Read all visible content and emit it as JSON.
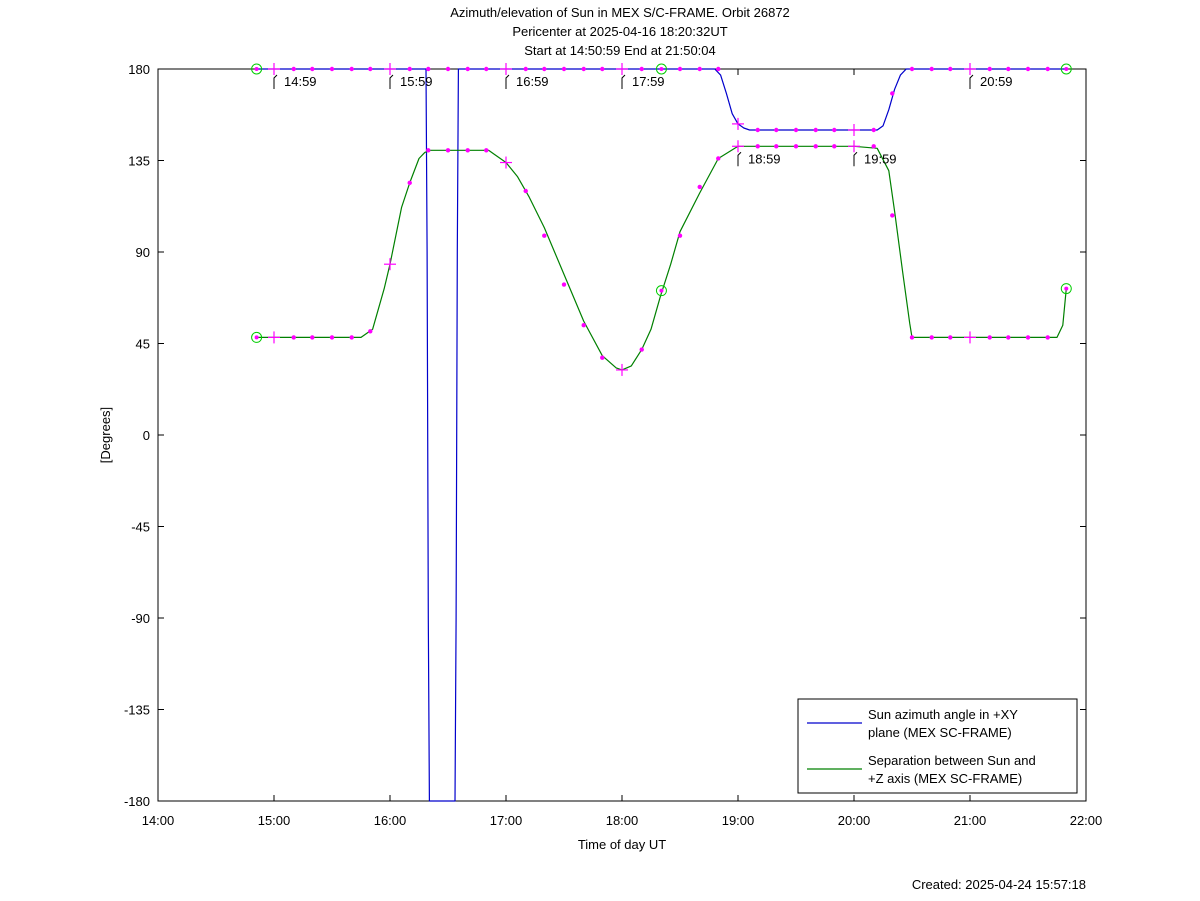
{
  "chart_data": {
    "type": "line",
    "title_lines": [
      "Azimuth/elevation of Sun in MEX S/C-FRAME.  Orbit 26872",
      "Pericenter at 2025-04-16 18:20:32UT",
      "Start at 14:50:59 End at 21:50:04"
    ],
    "xlabel": "Time of day UT",
    "ylabel": "[Degrees]",
    "xlim": [
      14.0,
      22.0
    ],
    "ylim": [
      -180,
      180
    ],
    "x_ticks": [
      {
        "value": 14,
        "label": "14:00"
      },
      {
        "value": 15,
        "label": "15:00"
      },
      {
        "value": 16,
        "label": "16:00"
      },
      {
        "value": 17,
        "label": "17:00"
      },
      {
        "value": 18,
        "label": "18:00"
      },
      {
        "value": 19,
        "label": "19:00"
      },
      {
        "value": 20,
        "label": "20:00"
      },
      {
        "value": 21,
        "label": "21:00"
      },
      {
        "value": 22,
        "label": "22:00"
      }
    ],
    "y_ticks": [
      {
        "value": 180,
        "label": "180"
      },
      {
        "value": 135,
        "label": "135"
      },
      {
        "value": 90,
        "label": "90"
      },
      {
        "value": 45,
        "label": "45"
      },
      {
        "value": 0,
        "label": "0"
      },
      {
        "value": -45,
        "label": "-45"
      },
      {
        "value": -90,
        "label": "-90"
      },
      {
        "value": -135,
        "label": "-135"
      },
      {
        "value": -180,
        "label": "-180"
      }
    ],
    "legend_position": "bottom-right",
    "series": [
      {
        "name_lines": [
          "Sun azimuth angle in +XY",
          "plane (MEX SC-FRAME)"
        ],
        "color": "#0000cc",
        "points": [
          [
            14.85,
            180
          ],
          [
            16.31,
            180
          ],
          [
            16.32,
            90
          ],
          [
            16.33,
            -90
          ],
          [
            16.34,
            -180
          ],
          [
            16.56,
            -180
          ],
          [
            16.57,
            -90
          ],
          [
            16.58,
            90
          ],
          [
            16.59,
            180
          ],
          [
            18.8,
            180
          ],
          [
            18.85,
            177
          ],
          [
            18.9,
            168
          ],
          [
            18.95,
            158
          ],
          [
            19.0,
            153
          ],
          [
            19.05,
            151
          ],
          [
            19.1,
            150
          ],
          [
            20.2,
            150
          ],
          [
            20.25,
            152
          ],
          [
            20.3,
            160
          ],
          [
            20.35,
            170
          ],
          [
            20.4,
            177
          ],
          [
            20.45,
            180
          ],
          [
            21.83,
            180
          ]
        ]
      },
      {
        "name_lines": [
          "Separation between Sun and",
          "+Z axis (MEX SC-FRAME)"
        ],
        "color": "#008000",
        "points": [
          [
            14.85,
            48
          ],
          [
            15.75,
            48
          ],
          [
            15.85,
            52
          ],
          [
            15.9,
            62
          ],
          [
            15.95,
            72
          ],
          [
            16.0,
            84
          ],
          [
            16.05,
            98
          ],
          [
            16.1,
            112
          ],
          [
            16.17,
            124
          ],
          [
            16.25,
            136
          ],
          [
            16.3,
            139
          ],
          [
            16.35,
            140
          ],
          [
            16.85,
            140
          ],
          [
            16.9,
            138
          ],
          [
            17.0,
            134
          ],
          [
            17.1,
            127
          ],
          [
            17.2,
            117
          ],
          [
            17.33,
            102
          ],
          [
            17.5,
            79
          ],
          [
            17.67,
            56
          ],
          [
            17.83,
            39
          ],
          [
            17.95,
            33
          ],
          [
            18.0,
            32
          ],
          [
            18.08,
            34
          ],
          [
            18.17,
            42
          ],
          [
            18.25,
            52
          ],
          [
            18.33,
            68
          ],
          [
            18.42,
            84
          ],
          [
            18.5,
            100
          ],
          [
            18.67,
            119
          ],
          [
            18.83,
            136
          ],
          [
            19.0,
            142
          ],
          [
            19.2,
            142
          ],
          [
            20.0,
            142
          ],
          [
            20.2,
            141
          ],
          [
            20.3,
            130
          ],
          [
            20.35,
            110
          ],
          [
            20.42,
            80
          ],
          [
            20.48,
            55
          ],
          [
            20.5,
            48
          ],
          [
            21.75,
            48
          ],
          [
            21.8,
            54
          ],
          [
            21.83,
            72
          ]
        ]
      }
    ],
    "markers": {
      "color": "#ff00ff",
      "dots": [
        [
          15.17,
          180
        ],
        [
          15.33,
          180
        ],
        [
          15.5,
          180
        ],
        [
          15.67,
          180
        ],
        [
          15.83,
          180
        ],
        [
          16.17,
          180
        ],
        [
          16.33,
          180
        ],
        [
          16.5,
          180
        ],
        [
          16.67,
          180
        ],
        [
          16.83,
          180
        ],
        [
          17.17,
          180
        ],
        [
          17.33,
          180
        ],
        [
          17.5,
          180
        ],
        [
          17.67,
          180
        ],
        [
          17.83,
          180
        ],
        [
          18.17,
          180
        ],
        [
          18.5,
          180
        ],
        [
          18.67,
          180
        ],
        [
          18.83,
          180
        ],
        [
          19.17,
          150
        ],
        [
          19.33,
          150
        ],
        [
          19.5,
          150
        ],
        [
          19.67,
          150
        ],
        [
          19.83,
          150
        ],
        [
          20.17,
          150
        ],
        [
          20.33,
          168
        ],
        [
          20.5,
          180
        ],
        [
          20.67,
          180
        ],
        [
          20.83,
          180
        ],
        [
          21.17,
          180
        ],
        [
          21.33,
          180
        ],
        [
          21.5,
          180
        ],
        [
          21.67,
          180
        ],
        [
          15.17,
          48
        ],
        [
          15.33,
          48
        ],
        [
          15.5,
          48
        ],
        [
          15.67,
          48
        ],
        [
          15.83,
          51
        ],
        [
          16.17,
          124
        ],
        [
          16.33,
          140
        ],
        [
          16.5,
          140
        ],
        [
          16.67,
          140
        ],
        [
          16.83,
          140
        ],
        [
          17.17,
          120
        ],
        [
          17.33,
          98
        ],
        [
          17.5,
          74
        ],
        [
          17.67,
          54
        ],
        [
          17.83,
          38
        ],
        [
          18.17,
          42
        ],
        [
          18.5,
          98
        ],
        [
          18.67,
          122
        ],
        [
          18.83,
          136
        ],
        [
          19.17,
          142
        ],
        [
          19.33,
          142
        ],
        [
          19.5,
          142
        ],
        [
          19.67,
          142
        ],
        [
          19.83,
          142
        ],
        [
          20.17,
          142
        ],
        [
          20.33,
          108
        ],
        [
          20.5,
          48
        ],
        [
          20.67,
          48
        ],
        [
          20.83,
          48
        ],
        [
          21.17,
          48
        ],
        [
          21.33,
          48
        ],
        [
          21.5,
          48
        ],
        [
          21.67,
          48
        ]
      ],
      "crosses": [
        [
          15.0,
          180
        ],
        [
          16.0,
          180
        ],
        [
          17.0,
          180
        ],
        [
          18.0,
          180
        ],
        [
          19.0,
          153
        ],
        [
          20.0,
          150
        ],
        [
          21.0,
          180
        ],
        [
          15.0,
          48
        ],
        [
          16.0,
          84
        ],
        [
          17.0,
          134
        ],
        [
          18.0,
          32
        ],
        [
          19.0,
          142
        ],
        [
          20.0,
          142
        ],
        [
          21.0,
          48
        ]
      ],
      "circles": [
        [
          14.85,
          180
        ],
        [
          18.34,
          180
        ],
        [
          21.83,
          180
        ],
        [
          14.85,
          48
        ],
        [
          18.34,
          71
        ],
        [
          21.83,
          72
        ]
      ]
    },
    "hour_marks": [
      {
        "x": 15.0,
        "y": 180,
        "label": "14:59"
      },
      {
        "x": 16.0,
        "y": 180,
        "label": "15:59"
      },
      {
        "x": 17.0,
        "y": 180,
        "label": "16:59"
      },
      {
        "x": 18.0,
        "y": 180,
        "label": "17:59"
      },
      {
        "x": 19.0,
        "y": 142,
        "label": "18:59"
      },
      {
        "x": 20.0,
        "y": 142,
        "label": "19:59"
      },
      {
        "x": 21.0,
        "y": 180,
        "label": "20:59"
      }
    ],
    "grid": false
  },
  "footer": {
    "created": "Created: 2025-04-24 15:57:18"
  }
}
